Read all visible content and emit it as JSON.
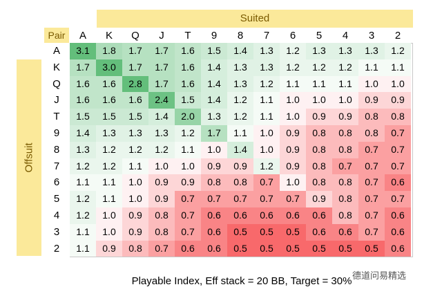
{
  "suited_label": "Suited",
  "pair_label": "Pair",
  "offsuit_label": "Offsuit",
  "columns": [
    "A",
    "K",
    "Q",
    "J",
    "T",
    "9",
    "8",
    "7",
    "6",
    "5",
    "4",
    "3",
    "2"
  ],
  "rows": [
    {
      "label": "A",
      "values": [
        "3.1",
        "1.8",
        "1.7",
        "1.7",
        "1.6",
        "1.5",
        "1.4",
        "1.3",
        "1.2",
        "1.3",
        "1.3",
        "1.3",
        "1.2"
      ]
    },
    {
      "label": "K",
      "values": [
        "1.7",
        "3.0",
        "1.7",
        "1.7",
        "1.6",
        "1.4",
        "1.3",
        "1.3",
        "1.2",
        "1.2",
        "1.2",
        "1.1",
        "1.1"
      ]
    },
    {
      "label": "Q",
      "values": [
        "1.6",
        "1.6",
        "2.8",
        "1.7",
        "1.6",
        "1.4",
        "1.3",
        "1.2",
        "1.1",
        "1.1",
        "1.1",
        "1.0",
        "1.0"
      ]
    },
    {
      "label": "J",
      "values": [
        "1.6",
        "1.6",
        "1.6",
        "2.4",
        "1.5",
        "1.4",
        "1.2",
        "1.1",
        "1.0",
        "1.0",
        "1.0",
        "0.9",
        "0.9"
      ]
    },
    {
      "label": "T",
      "values": [
        "1.5",
        "1.5",
        "1.5",
        "1.4",
        "2.0",
        "1.3",
        "1.2",
        "1.1",
        "1.0",
        "0.9",
        "0.9",
        "0.8",
        "0.8"
      ]
    },
    {
      "label": "9",
      "values": [
        "1.4",
        "1.3",
        "1.3",
        "1.3",
        "1.2",
        "1.7",
        "1.1",
        "1.0",
        "0.9",
        "0.8",
        "0.8",
        "0.8",
        "0.7"
      ]
    },
    {
      "label": "8",
      "values": [
        "1.3",
        "1.2",
        "1.2",
        "1.2",
        "1.1",
        "1.0",
        "1.4",
        "1.0",
        "0.9",
        "0.8",
        "0.8",
        "0.7",
        "0.7"
      ]
    },
    {
      "label": "7",
      "values": [
        "1.2",
        "1.2",
        "1.1",
        "1.0",
        "1.0",
        "0.9",
        "0.9",
        "1.2",
        "0.9",
        "0.8",
        "0.7",
        "0.7",
        "0.7"
      ]
    },
    {
      "label": "6",
      "values": [
        "1.1",
        "1.1",
        "1.0",
        "0.9",
        "0.9",
        "0.8",
        "0.8",
        "0.7",
        "1.0",
        "0.8",
        "0.8",
        "0.7",
        "0.6"
      ]
    },
    {
      "label": "5",
      "values": [
        "1.2",
        "1.1",
        "1.0",
        "0.9",
        "0.7",
        "0.7",
        "0.7",
        "0.7",
        "0.7",
        "0.9",
        "0.8",
        "0.7",
        "0.7"
      ]
    },
    {
      "label": "4",
      "values": [
        "1.2",
        "1.0",
        "0.9",
        "0.8",
        "0.7",
        "0.6",
        "0.6",
        "0.6",
        "0.6",
        "0.6",
        "0.8",
        "0.7",
        "0.6"
      ]
    },
    {
      "label": "3",
      "values": [
        "1.1",
        "1.0",
        "0.9",
        "0.8",
        "0.7",
        "0.6",
        "0.5",
        "0.5",
        "0.5",
        "0.6",
        "0.6",
        "0.7",
        "0.6"
      ]
    },
    {
      "label": "2",
      "values": [
        "1.1",
        "0.9",
        "0.8",
        "0.7",
        "0.6",
        "0.6",
        "0.5",
        "0.5",
        "0.5",
        "0.5",
        "0.5",
        "0.5",
        "0.6"
      ]
    }
  ],
  "caption": "Playable Index, Eff stack = 20 BB, Target = 30%",
  "watermark": "德道问易精选"
}
